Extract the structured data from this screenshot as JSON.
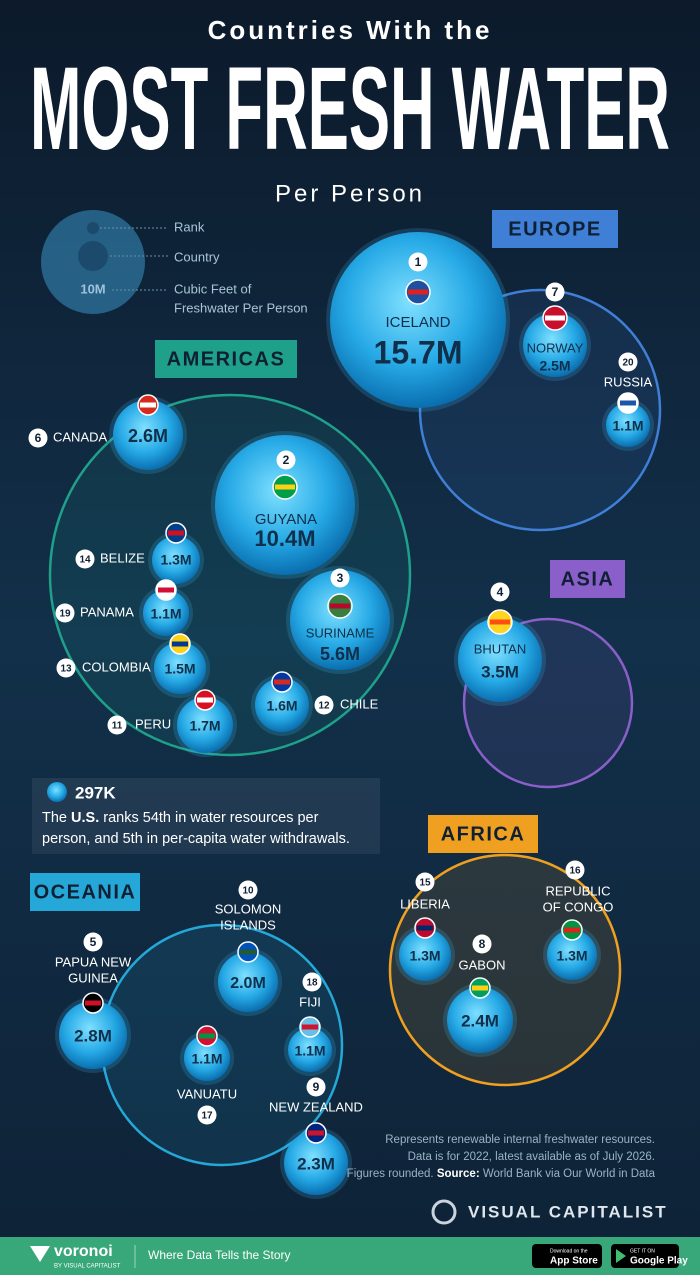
{
  "header": {
    "kicker": "Countries With the",
    "title": "MOST FRESH WATER",
    "subtitle": "Per Person"
  },
  "legend": {
    "rank": "Rank",
    "country": "Country",
    "value_lines": [
      "Cubic Feet of",
      "Freshwater Per Person"
    ],
    "sample": "10M"
  },
  "regions": [
    {
      "label": "EUROPE"
    },
    {
      "label": "AMERICAS"
    },
    {
      "label": "ASIA"
    },
    {
      "label": "AFRICA"
    },
    {
      "label": "OCEANIA"
    }
  ],
  "countries": [
    {
      "rank": 1,
      "name": [
        "ICELAND"
      ],
      "value": "15.7M"
    },
    {
      "rank": 7,
      "name": [
        "NORWAY"
      ],
      "value": "2.5M"
    },
    {
      "rank": 20,
      "name": [
        "RUSSIA"
      ],
      "value": "1.1M"
    },
    {
      "rank": 6,
      "name": [
        "CANADA"
      ],
      "value": "2.6M"
    },
    {
      "rank": 2,
      "name": [
        "GUYANA"
      ],
      "value": "10.4M"
    },
    {
      "rank": 3,
      "name": [
        "SURINAME"
      ],
      "value": "5.6M"
    },
    {
      "rank": 14,
      "name": [
        "BELIZE"
      ],
      "value": "1.3M"
    },
    {
      "rank": 19,
      "name": [
        "PANAMA"
      ],
      "value": "1.1M"
    },
    {
      "rank": 13,
      "name": [
        "COLOMBIA"
      ],
      "value": "1.5M"
    },
    {
      "rank": 11,
      "name": [
        "PERU"
      ],
      "value": "1.7M"
    },
    {
      "rank": 12,
      "name": [
        "CHILE"
      ],
      "value": "1.6M"
    },
    {
      "rank": 4,
      "name": [
        "BHUTAN"
      ],
      "value": "3.5M"
    },
    {
      "rank": 15,
      "name": [
        "LIBERIA"
      ],
      "value": "1.3M"
    },
    {
      "rank": 8,
      "name": [
        "GABON"
      ],
      "value": "2.4M"
    },
    {
      "rank": 16,
      "name": [
        "REPUBLIC",
        "OF CONGO"
      ],
      "value": "1.3M"
    },
    {
      "rank": 5,
      "name": [
        "PAPUA NEW",
        "GUINEA"
      ],
      "value": "2.8M"
    },
    {
      "rank": 10,
      "name": [
        "SOLOMON",
        "ISLANDS"
      ],
      "value": "2.0M"
    },
    {
      "rank": 17,
      "name": [
        "VANUATU"
      ],
      "value": "1.1M"
    },
    {
      "rank": 18,
      "name": [
        "FIJI"
      ],
      "value": "1.1M"
    },
    {
      "rank": 9,
      "name": [
        "NEW ZEALAND"
      ],
      "value": "2.3M"
    }
  ],
  "note": {
    "value": "297K",
    "lead": "The",
    "bold": "U.S.",
    "line1": "ranks 54th in water resources per",
    "line2": "person, and 5th in per-capita water withdrawals."
  },
  "source": {
    "line1": "Represents renewable internal freshwater resources.",
    "line2": "Data is for 2022, latest available as of July 2026.",
    "line3": "Figures rounded.",
    "label": "Source:",
    "text": "World Bank via Our World in Data"
  },
  "brand": "VISUAL CAPITALIST",
  "footer": {
    "logo": "voronoi",
    "logo_sub": "BY VISUAL CAPITALIST",
    "tagline": "Where Data Tells the Story",
    "app_small": "Download on the",
    "app": "App Store",
    "play_small": "GET IT ON",
    "play": "Google Play"
  }
}
